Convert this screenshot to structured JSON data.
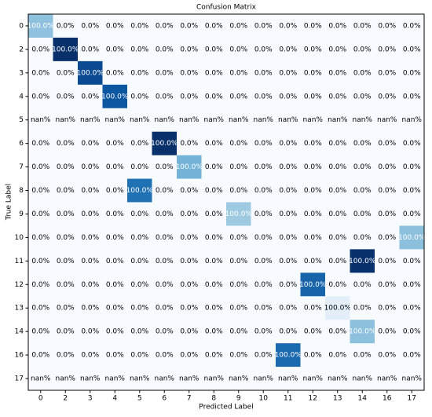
{
  "chart_data": {
    "type": "heatmap",
    "title": "Confusion Matrix",
    "x_label": "Predicted Label",
    "y_label": "True Label",
    "categories": [
      "0",
      "2",
      "3",
      "4",
      "5",
      "6",
      "7",
      "8",
      "9",
      "10",
      "11",
      "12",
      "13",
      "14",
      "16",
      "17"
    ],
    "rows": [
      "0",
      "2",
      "3",
      "4",
      "5",
      "6",
      "7",
      "8",
      "9",
      "10",
      "11",
      "12",
      "13",
      "14",
      "16",
      "17"
    ],
    "values": [
      [
        100,
        0,
        0,
        0,
        0,
        0,
        0,
        0,
        0,
        0,
        0,
        0,
        0,
        0,
        0,
        0
      ],
      [
        0,
        100,
        0,
        0,
        0,
        0,
        0,
        0,
        0,
        0,
        0,
        0,
        0,
        0,
        0,
        0
      ],
      [
        0,
        0,
        100,
        0,
        0,
        0,
        0,
        0,
        0,
        0,
        0,
        0,
        0,
        0,
        0,
        0
      ],
      [
        0,
        0,
        0,
        100,
        0,
        0,
        0,
        0,
        0,
        0,
        0,
        0,
        0,
        0,
        0,
        0
      ],
      [
        null,
        null,
        null,
        null,
        null,
        null,
        null,
        null,
        null,
        null,
        null,
        null,
        null,
        null,
        null,
        null
      ],
      [
        0,
        0,
        0,
        0,
        0,
        100,
        0,
        0,
        0,
        0,
        0,
        0,
        0,
        0,
        0,
        0
      ],
      [
        0,
        0,
        0,
        0,
        0,
        0,
        100,
        0,
        0,
        0,
        0,
        0,
        0,
        0,
        0,
        0
      ],
      [
        0,
        0,
        0,
        0,
        100,
        0,
        0,
        0,
        0,
        0,
        0,
        0,
        0,
        0,
        0,
        0
      ],
      [
        0,
        0,
        0,
        0,
        0,
        0,
        0,
        0,
        100,
        0,
        0,
        0,
        0,
        0,
        0,
        0
      ],
      [
        0,
        0,
        0,
        0,
        0,
        0,
        0,
        0,
        0,
        0,
        0,
        0,
        0,
        0,
        0,
        100
      ],
      [
        0,
        0,
        0,
        0,
        0,
        0,
        0,
        0,
        0,
        0,
        0,
        0,
        0,
        100,
        0,
        0
      ],
      [
        0,
        0,
        0,
        0,
        0,
        0,
        0,
        0,
        0,
        0,
        0,
        100,
        0,
        0,
        0,
        0
      ],
      [
        0,
        0,
        0,
        0,
        0,
        0,
        0,
        0,
        0,
        0,
        0,
        0,
        100,
        0,
        0,
        0
      ],
      [
        0,
        0,
        0,
        0,
        0,
        0,
        0,
        0,
        0,
        0,
        0,
        0,
        0,
        100,
        0,
        0
      ],
      [
        0,
        0,
        0,
        0,
        0,
        0,
        0,
        0,
        0,
        0,
        100,
        0,
        0,
        0,
        0,
        0
      ],
      [
        null,
        null,
        null,
        null,
        null,
        null,
        null,
        null,
        null,
        null,
        null,
        null,
        null,
        null,
        null,
        null
      ]
    ],
    "value_labels": [
      [
        "100.0%",
        "0.0%",
        "0.0%",
        "0.0%",
        "0.0%",
        "0.0%",
        "0.0%",
        "0.0%",
        "0.0%",
        "0.0%",
        "0.0%",
        "0.0%",
        "0.0%",
        "0.0%",
        "0.0%",
        "0.0%"
      ],
      [
        "0.0%",
        "100.0%",
        "0.0%",
        "0.0%",
        "0.0%",
        "0.0%",
        "0.0%",
        "0.0%",
        "0.0%",
        "0.0%",
        "0.0%",
        "0.0%",
        "0.0%",
        "0.0%",
        "0.0%",
        "0.0%"
      ],
      [
        "0.0%",
        "0.0%",
        "100.0%",
        "0.0%",
        "0.0%",
        "0.0%",
        "0.0%",
        "0.0%",
        "0.0%",
        "0.0%",
        "0.0%",
        "0.0%",
        "0.0%",
        "0.0%",
        "0.0%",
        "0.0%"
      ],
      [
        "0.0%",
        "0.0%",
        "0.0%",
        "100.0%",
        "0.0%",
        "0.0%",
        "0.0%",
        "0.0%",
        "0.0%",
        "0.0%",
        "0.0%",
        "0.0%",
        "0.0%",
        "0.0%",
        "0.0%",
        "0.0%"
      ],
      [
        "nan%",
        "nan%",
        "nan%",
        "nan%",
        "nan%",
        "nan%",
        "nan%",
        "nan%",
        "nan%",
        "nan%",
        "nan%",
        "nan%",
        "nan%",
        "nan%",
        "nan%",
        "nan%"
      ],
      [
        "0.0%",
        "0.0%",
        "0.0%",
        "0.0%",
        "0.0%",
        "100.0%",
        "0.0%",
        "0.0%",
        "0.0%",
        "0.0%",
        "0.0%",
        "0.0%",
        "0.0%",
        "0.0%",
        "0.0%",
        "0.0%"
      ],
      [
        "0.0%",
        "0.0%",
        "0.0%",
        "0.0%",
        "0.0%",
        "0.0%",
        "100.0%",
        "0.0%",
        "0.0%",
        "0.0%",
        "0.0%",
        "0.0%",
        "0.0%",
        "0.0%",
        "0.0%",
        "0.0%"
      ],
      [
        "0.0%",
        "0.0%",
        "0.0%",
        "0.0%",
        "100.0%",
        "0.0%",
        "0.0%",
        "0.0%",
        "0.0%",
        "0.0%",
        "0.0%",
        "0.0%",
        "0.0%",
        "0.0%",
        "0.0%",
        "0.0%"
      ],
      [
        "0.0%",
        "0.0%",
        "0.0%",
        "0.0%",
        "0.0%",
        "0.0%",
        "0.0%",
        "0.0%",
        "100.0%",
        "0.0%",
        "0.0%",
        "0.0%",
        "0.0%",
        "0.0%",
        "0.0%",
        "0.0%"
      ],
      [
        "0.0%",
        "0.0%",
        "0.0%",
        "0.0%",
        "0.0%",
        "0.0%",
        "0.0%",
        "0.0%",
        "0.0%",
        "0.0%",
        "0.0%",
        "0.0%",
        "0.0%",
        "0.0%",
        "0.0%",
        "100.0%"
      ],
      [
        "0.0%",
        "0.0%",
        "0.0%",
        "0.0%",
        "0.0%",
        "0.0%",
        "0.0%",
        "0.0%",
        "0.0%",
        "0.0%",
        "0.0%",
        "0.0%",
        "0.0%",
        "100.0%",
        "0.0%",
        "0.0%"
      ],
      [
        "0.0%",
        "0.0%",
        "0.0%",
        "0.0%",
        "0.0%",
        "0.0%",
        "0.0%",
        "0.0%",
        "0.0%",
        "0.0%",
        "0.0%",
        "100.0%",
        "0.0%",
        "0.0%",
        "0.0%",
        "0.0%"
      ],
      [
        "0.0%",
        "0.0%",
        "0.0%",
        "0.0%",
        "0.0%",
        "0.0%",
        "0.0%",
        "0.0%",
        "0.0%",
        "0.0%",
        "0.0%",
        "0.0%",
        "100.0%",
        "0.0%",
        "0.0%",
        "0.0%"
      ],
      [
        "0.0%",
        "0.0%",
        "0.0%",
        "0.0%",
        "0.0%",
        "0.0%",
        "0.0%",
        "0.0%",
        "0.0%",
        "0.0%",
        "0.0%",
        "0.0%",
        "0.0%",
        "100.0%",
        "0.0%",
        "0.0%"
      ],
      [
        "0.0%",
        "0.0%",
        "0.0%",
        "0.0%",
        "0.0%",
        "0.0%",
        "0.0%",
        "0.0%",
        "0.0%",
        "0.0%",
        "100.0%",
        "0.0%",
        "0.0%",
        "0.0%",
        "0.0%",
        "0.0%"
      ],
      [
        "nan%",
        "nan%",
        "nan%",
        "nan%",
        "nan%",
        "nan%",
        "nan%",
        "nan%",
        "nan%",
        "nan%",
        "nan%",
        "nan%",
        "nan%",
        "nan%",
        "nan%",
        "nan%"
      ]
    ],
    "background_color": "#f7fbff",
    "row_colors": [
      "#8fc1de",
      "#08306b",
      "#0a4a90",
      "#0d57a1",
      null,
      "#08306b",
      "#73b3d8",
      "#2171b5",
      "#9ecae1",
      "#8dc0dd",
      "#08306b",
      "#1764ab",
      "#e3eef9",
      "#8cc0dd",
      "#1b69af",
      null
    ]
  }
}
